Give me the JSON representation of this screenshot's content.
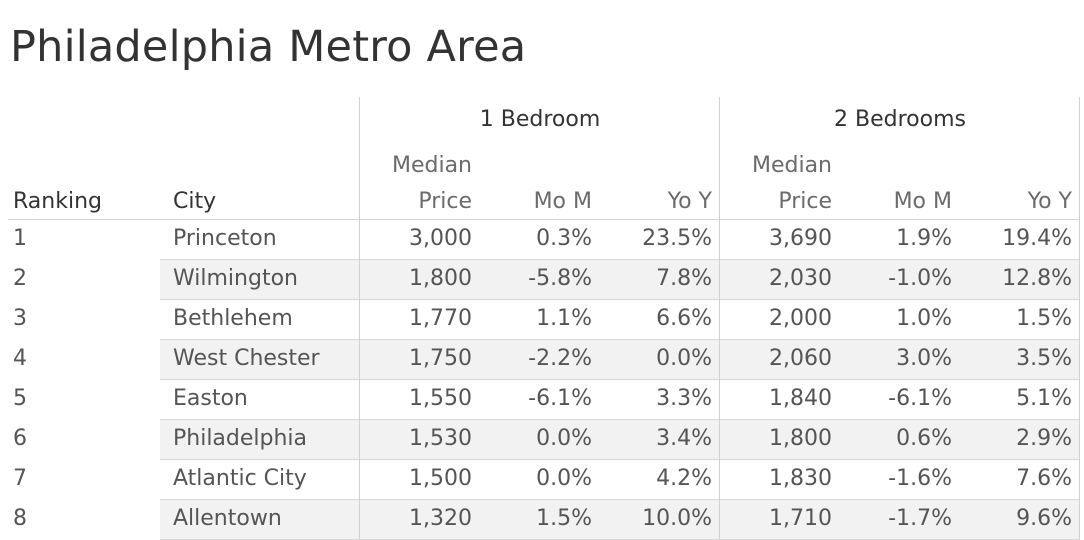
{
  "title": "Philadelphia Metro Area",
  "chart_data": {
    "type": "table",
    "title": "Philadelphia Metro Area",
    "row_headers": [
      "Ranking",
      "City"
    ],
    "groups": [
      {
        "label": "1 Bedroom",
        "columns": [
          "Median Price",
          "Mo M",
          "Yo Y"
        ]
      },
      {
        "label": "2 Bedrooms",
        "columns": [
          "Median Price",
          "Mo M",
          "Yo Y"
        ]
      }
    ],
    "column_labels": {
      "median_line1": "Median",
      "median_line2": "Price",
      "mom": "Mo M",
      "yoy": "Yo Y"
    },
    "rows": [
      {
        "rank": "1",
        "city": "Princeton",
        "values": [
          "3,000",
          "0.3%",
          "23.5%",
          "3,690",
          "1.9%",
          "19.4%"
        ]
      },
      {
        "rank": "2",
        "city": "Wilmington",
        "values": [
          "1,800",
          "-5.8%",
          "7.8%",
          "2,030",
          "-1.0%",
          "12.8%"
        ]
      },
      {
        "rank": "3",
        "city": "Bethlehem",
        "values": [
          "1,770",
          "1.1%",
          "6.6%",
          "2,000",
          "1.0%",
          "1.5%"
        ]
      },
      {
        "rank": "4",
        "city": "West Chester",
        "values": [
          "1,750",
          "-2.2%",
          "0.0%",
          "2,060",
          "3.0%",
          "3.5%"
        ]
      },
      {
        "rank": "5",
        "city": "Easton",
        "values": [
          "1,550",
          "-6.1%",
          "3.3%",
          "1,840",
          "-6.1%",
          "5.1%"
        ]
      },
      {
        "rank": "6",
        "city": "Philadelphia",
        "values": [
          "1,530",
          "0.0%",
          "3.4%",
          "1,800",
          "0.6%",
          "2.9%"
        ]
      },
      {
        "rank": "7",
        "city": "Atlantic City",
        "values": [
          "1,500",
          "0.0%",
          "4.2%",
          "1,830",
          "-1.6%",
          "7.6%"
        ]
      },
      {
        "rank": "8",
        "city": "Allentown",
        "values": [
          "1,320",
          "1.5%",
          "10.0%",
          "1,710",
          "-1.7%",
          "9.6%"
        ]
      }
    ]
  }
}
